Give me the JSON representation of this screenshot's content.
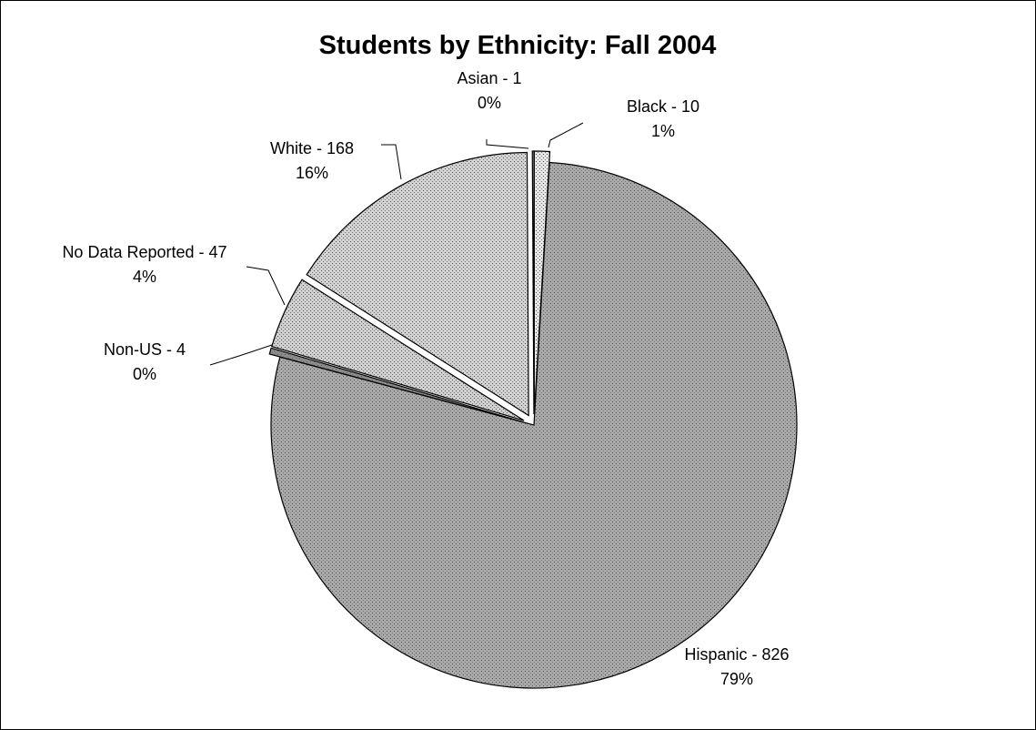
{
  "chart_data": {
    "type": "pie",
    "title": "Students by Ethnicity: Fall 2004",
    "slices": [
      {
        "name": "Black",
        "value": 10,
        "label": "Black - 10",
        "percent_label": "1%",
        "exploded": true
      },
      {
        "name": "Hispanic",
        "value": 826,
        "label": "Hispanic - 826",
        "percent_label": "79%",
        "exploded": false
      },
      {
        "name": "Non-US",
        "value": 4,
        "label": "Non-US - 4",
        "percent_label": "0%",
        "exploded": true
      },
      {
        "name": "No Data Reported",
        "value": 47,
        "label": "No Data Reported - 47",
        "percent_label": "4%",
        "exploded": true
      },
      {
        "name": "White",
        "value": 168,
        "label": "White - 168",
        "percent_label": "16%",
        "exploded": true
      },
      {
        "name": "Asian",
        "value": 1,
        "label": "Asian - 1",
        "percent_label": "0%",
        "exploded": true
      }
    ],
    "start_angle_deg": 0,
    "direction": "clockwise",
    "legend": "none",
    "labels": "outside with leader lines",
    "fill_style": "grey stippled pattern",
    "colors": {
      "Black": "#e6e6e6",
      "Hispanic": "#a9a9a9",
      "Non-US": "#8c8c8c",
      "No Data Reported": "#cfcfcf",
      "White": "#d2d2d2",
      "Asian": "#ececec"
    }
  }
}
